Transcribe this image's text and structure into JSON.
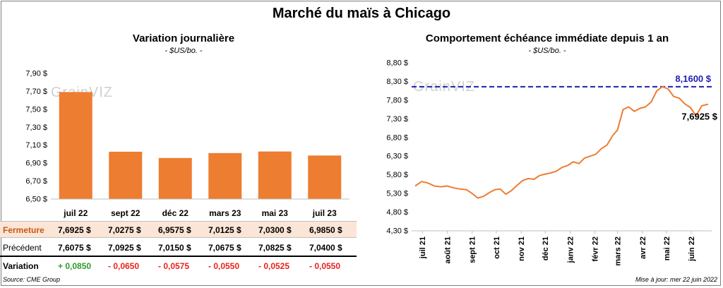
{
  "title": "Marché du maïs à Chicago",
  "left_panel": {
    "title": "Variation  journalière",
    "unit": "- $US/bo. -"
  },
  "right_panel": {
    "title": "Comportement  échéance immédiate depuis 1 an",
    "unit": "- $US/bo. -",
    "max_label": "8,1600 $",
    "last_label": "7,6925 $"
  },
  "watermark": "GrainVIZ",
  "table": {
    "rows": [
      {
        "label": "Fermeture",
        "values": [
          "7,6925  $",
          "7,0275  $",
          "6,9575  $",
          "7,0125  $",
          "7,0300  $",
          "6,9850  $"
        ]
      },
      {
        "label": "Précédent",
        "values": [
          "7,6075  $",
          "7,0925  $",
          "7,0150  $",
          "7,0675  $",
          "7,0825  $",
          "7,0400  $"
        ]
      },
      {
        "label": "Variation",
        "values": [
          "+ 0,0850",
          "- 0,0650",
          "- 0,0575",
          "- 0,0550",
          "- 0,0525",
          "- 0,0550"
        ]
      }
    ],
    "variation_colors": [
      "#2e9b2e",
      "#e8231c",
      "#e8231c",
      "#e8231c",
      "#e8231c",
      "#e8231c"
    ]
  },
  "footer": {
    "source": "Source: CME Group",
    "updated": "Mise à jour: mer 22 juin 2022"
  },
  "colors": {
    "bar": "#ed7d31",
    "line": "#ed7d31",
    "max_line": "#1f1fb4",
    "fermeture_bg": "#fbe5d6"
  },
  "chart_data": [
    {
      "type": "bar",
      "title": "Variation  journalière",
      "ylabel": "- $US/bo. -",
      "categories": [
        "juil 22",
        "sept 22",
        "déc 22",
        "mars 23",
        "mai 23",
        "juil 23"
      ],
      "values": [
        7.6925,
        7.0275,
        6.9575,
        7.0125,
        7.03,
        6.985
      ],
      "ylim": [
        6.5,
        7.9
      ],
      "yticks": [
        6.5,
        6.7,
        6.9,
        7.1,
        7.3,
        7.5,
        7.7,
        7.9
      ],
      "ytick_labels": [
        "6,50 $",
        "6,70 $",
        "6,90 $",
        "7,10 $",
        "7,30 $",
        "7,50 $",
        "7,70 $",
        "7,90 $"
      ],
      "grid": false
    },
    {
      "type": "line",
      "title": "Comportement  échéance immédiate depuis 1 an",
      "ylabel": "- $US/bo. -",
      "ylim": [
        4.3,
        8.8
      ],
      "yticks": [
        4.3,
        4.8,
        5.3,
        5.8,
        6.3,
        6.8,
        7.3,
        7.8,
        8.3,
        8.8
      ],
      "ytick_labels": [
        "4,30 $",
        "4,80 $",
        "5,30 $",
        "5,80 $",
        "6,30 $",
        "6,80 $",
        "7,30 $",
        "7,80 $",
        "8,30 $",
        "8,80 $"
      ],
      "xticks": [
        "juil 21",
        "août 21",
        "sept 21",
        "oct 21",
        "nov 21",
        "déc 21",
        "janv 22",
        "févr 22",
        "mars 22",
        "avr 22",
        "mai 22",
        "juin 22"
      ],
      "x": [
        "2021-06-22",
        "2021-06-30",
        "2021-07-08",
        "2021-07-16",
        "2021-07-24",
        "2021-08-01",
        "2021-08-09",
        "2021-08-17",
        "2021-08-25",
        "2021-09-01",
        "2021-09-08",
        "2021-09-15",
        "2021-09-22",
        "2021-09-29",
        "2021-10-06",
        "2021-10-13",
        "2021-10-20",
        "2021-10-27",
        "2021-11-03",
        "2021-11-10",
        "2021-11-17",
        "2021-11-24",
        "2021-12-01",
        "2021-12-08",
        "2021-12-15",
        "2021-12-22",
        "2021-12-29",
        "2022-01-05",
        "2022-01-12",
        "2022-01-19",
        "2022-01-26",
        "2022-02-02",
        "2022-02-09",
        "2022-02-16",
        "2022-02-23",
        "2022-03-01",
        "2022-03-08",
        "2022-03-15",
        "2022-03-22",
        "2022-03-29",
        "2022-04-05",
        "2022-04-12",
        "2022-04-19",
        "2022-04-26",
        "2022-05-03",
        "2022-05-10",
        "2022-05-17",
        "2022-05-24",
        "2022-05-31",
        "2022-06-07",
        "2022-06-14",
        "2022-06-22"
      ],
      "series": [
        {
          "values": [
            5.5,
            5.62,
            5.58,
            5.5,
            5.48,
            5.5,
            5.45,
            5.42,
            5.4,
            5.3,
            5.18,
            5.22,
            5.32,
            5.4,
            5.42,
            5.28,
            5.38,
            5.52,
            5.65,
            5.7,
            5.68,
            5.78,
            5.82,
            5.85,
            5.9,
            6.0,
            6.05,
            6.15,
            6.1,
            6.25,
            6.3,
            6.35,
            6.5,
            6.6,
            6.85,
            7.0,
            7.55,
            7.62,
            7.5,
            7.58,
            7.62,
            7.75,
            8.05,
            8.16,
            8.1,
            7.9,
            7.85,
            7.7,
            7.6,
            7.38,
            7.65,
            7.6925
          ]
        }
      ],
      "annotations": [
        {
          "text": "8,1600 $",
          "y": 8.16,
          "style": "dashed horizontal line"
        },
        {
          "text": "7,6925 $",
          "y": 7.6925
        }
      ],
      "grid": false
    }
  ]
}
